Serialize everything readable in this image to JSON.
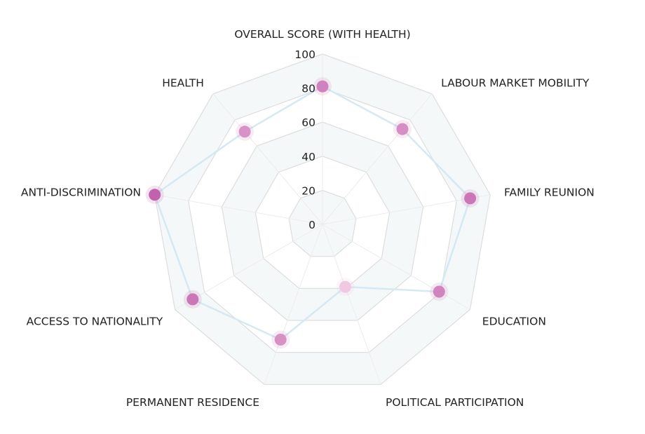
{
  "chart_data": {
    "type": "radar",
    "categories": [
      "OVERALL SCORE (WITH HEALTH)",
      "LABOUR MARKET MOBILITY",
      "FAMILY REUNION",
      "EDUCATION",
      "POLITICAL PARTICIPATION",
      "PERMANENT RESIDENCE",
      "ACCESS TO NATIONALITY",
      "ANTI-DISCRIMINATION",
      "HEALTH"
    ],
    "values": [
      81,
      73,
      88,
      79,
      39,
      72,
      88,
      100,
      71
    ],
    "rlim": [
      0,
      100
    ],
    "ticks": [
      "0",
      "20",
      "40",
      "60",
      "80",
      "100"
    ],
    "tick_values": [
      0,
      20,
      40,
      60,
      80,
      100
    ],
    "colors": {
      "grid": "#dddddd",
      "band": "#f5f8f9",
      "line": "#d4e9f2",
      "point_low": "#f0c8e2",
      "point_high": "#c162ad"
    }
  }
}
